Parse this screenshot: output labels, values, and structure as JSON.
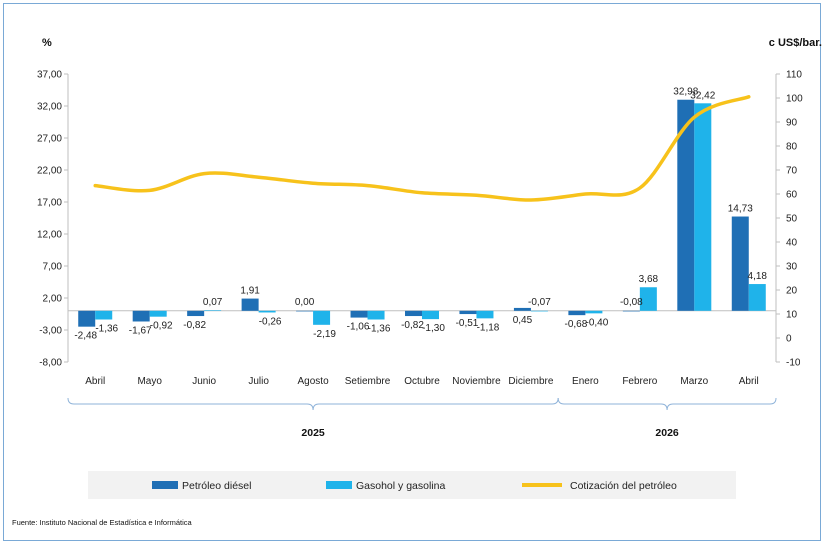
{
  "chart_data": {
    "type": "bar",
    "left_unit": "%",
    "right_unit": "c US$/bar.",
    "categories": [
      "Abril",
      "Mayo",
      "Junio",
      "Julio",
      "Agosto",
      "Setiembre",
      "Octubre",
      "Noviembre",
      "Diciembre",
      "Enero",
      "Febrero",
      "Marzo",
      "Abril"
    ],
    "year_groups": [
      {
        "label": "2025",
        "from": 0,
        "to": 8
      },
      {
        "label": "2026",
        "from": 9,
        "to": 12
      }
    ],
    "left_axis": {
      "min": -8,
      "max": 37,
      "ticks": [
        "37,00",
        "32,00",
        "27,00",
        "22,00",
        "17,00",
        "12,00",
        "7,00",
        "2,00",
        "-3,00",
        "-8,00"
      ],
      "tick_values": [
        37,
        32,
        27,
        22,
        17,
        12,
        7,
        2,
        -3,
        -8
      ]
    },
    "right_axis": {
      "min": -10,
      "max": 110,
      "ticks": [
        "110",
        "100",
        "90",
        "80",
        "70",
        "60",
        "50",
        "40",
        "30",
        "20",
        "10",
        "0",
        "-10"
      ],
      "tick_values": [
        110,
        100,
        90,
        80,
        70,
        60,
        50,
        40,
        30,
        20,
        10,
        0,
        -10
      ]
    },
    "series": [
      {
        "name": "Petróleo diésel",
        "kind": "bar",
        "axis": "left",
        "color": "#1f6fb5",
        "values": [
          -2.48,
          -1.67,
          -0.82,
          1.91,
          0.0,
          -1.06,
          -0.82,
          -0.51,
          0.45,
          -0.68,
          -0.08,
          32.98,
          14.73
        ],
        "labels": [
          "-2,48",
          "-1,67",
          "-0,82",
          "1,91",
          "0,00",
          "-1,06",
          "-0,82",
          "-0,51",
          "0,45",
          "-0,68",
          "-0,08",
          "32,98",
          "14,73"
        ]
      },
      {
        "name": "Gasohol y gasolina",
        "kind": "bar",
        "axis": "left",
        "color": "#1fb3ea",
        "values": [
          -1.36,
          -0.92,
          0.07,
          -0.26,
          -2.19,
          -1.36,
          -1.3,
          -1.18,
          -0.07,
          -0.4,
          3.68,
          32.42,
          4.18
        ],
        "labels": [
          "-1,36",
          "-0,92",
          "0,07",
          "-0,26",
          "-2,19",
          "-1,36",
          "-1,30",
          "-1,18",
          "-0,07",
          "-0,40",
          "3,68",
          "32,42",
          "4,18"
        ]
      },
      {
        "name": "Cotización del petróleo",
        "kind": "line",
        "axis": "right",
        "color": "#f7c21b",
        "values": [
          63.5,
          61.5,
          68.5,
          67.0,
          64.5,
          63.5,
          60.5,
          59.5,
          57.5,
          60.0,
          62.5,
          92.0,
          100.5
        ]
      }
    ],
    "legend_position": "bottom",
    "grid": false
  },
  "source": "Fuente: Instituto Nacional de Estadística e Informática"
}
